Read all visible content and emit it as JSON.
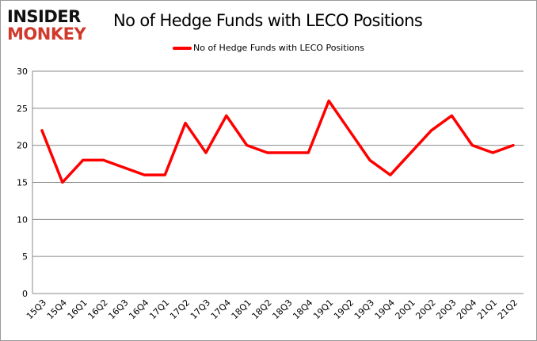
{
  "logo": {
    "line1": "INSIDER",
    "line2": "MONKEY"
  },
  "chart_data": {
    "type": "line",
    "title": "No of Hedge Funds with LECO Positions",
    "xlabel": "",
    "ylabel": "",
    "categories": [
      "15Q3",
      "15Q4",
      "16Q1",
      "16Q2",
      "16Q3",
      "16Q4",
      "17Q1",
      "17Q2",
      "17Q3",
      "17Q4",
      "18Q1",
      "18Q2",
      "18Q3",
      "18Q4",
      "19Q1",
      "19Q2",
      "19Q3",
      "19Q4",
      "20Q1",
      "20Q2",
      "20Q3",
      "20Q4",
      "21Q1",
      "21Q2"
    ],
    "series": [
      {
        "name": "No of Hedge Funds with LECO Positions",
        "color": "#ff0000",
        "values": [
          22,
          15,
          18,
          18,
          17,
          16,
          16,
          23,
          19,
          24,
          20,
          19,
          19,
          19,
          26,
          22,
          18,
          16,
          19,
          22,
          24,
          20,
          19,
          20
        ]
      }
    ],
    "ylim": [
      0,
      30
    ],
    "yticks": [
      0,
      5,
      10,
      15,
      20,
      25,
      30
    ],
    "grid": true,
    "legend_position": "top"
  }
}
